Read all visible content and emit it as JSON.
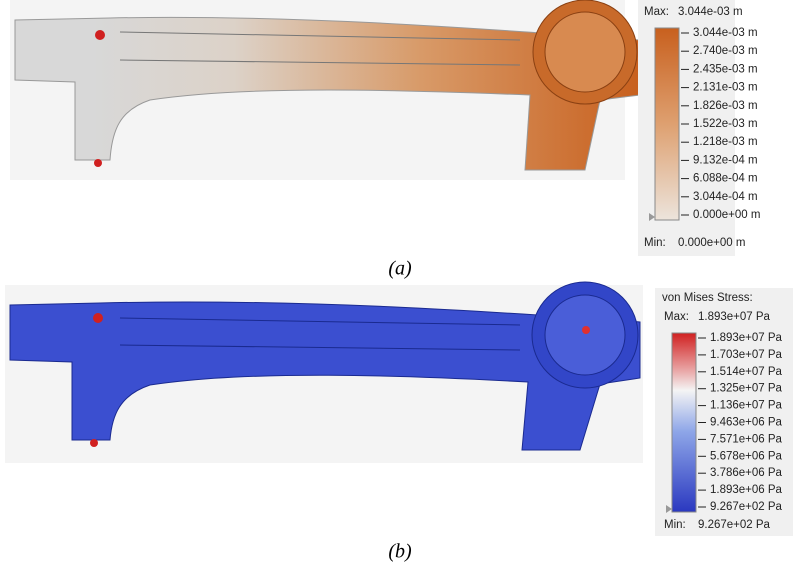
{
  "figure": {
    "panels": [
      {
        "caption": "(a)",
        "legend": {
          "max_label": "Max:",
          "max_value": "3.044e-03 m",
          "levels": [
            "3.044e-03 m",
            "2.740e-03 m",
            "2.435e-03 m",
            "2.131e-03 m",
            "1.826e-03 m",
            "1.522e-03 m",
            "1.218e-03 m",
            "9.132e-04 m",
            "6.088e-04 m",
            "3.044e-04 m",
            "0.000e+00 m"
          ],
          "min_label": "Min:",
          "min_value": "0.000e+00 m"
        }
      },
      {
        "caption": "(b)",
        "legend": {
          "title": "von Mises Stress:",
          "max_label": "Max:",
          "max_value": "1.893e+07 Pa",
          "levels": [
            "1.893e+07 Pa",
            "1.703e+07 Pa",
            "1.514e+07 Pa",
            "1.325e+07 Pa",
            "1.136e+07 Pa",
            "9.463e+06 Pa",
            "7.571e+06 Pa",
            "5.678e+06 Pa",
            "3.786e+06 Pa",
            "1.893e+06 Pa",
            "9.267e+02 Pa"
          ],
          "min_label": "Min:",
          "min_value": "9.267e+02 Pa"
        }
      }
    ]
  }
}
